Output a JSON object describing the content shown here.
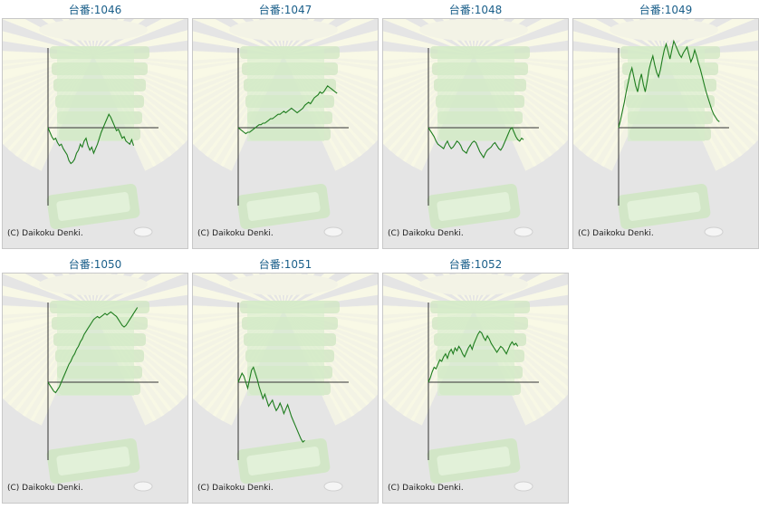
{
  "colors": {
    "title": "#1a5f8a",
    "line": "#1e7d1e",
    "axis": "#333333",
    "panel_bg": "#e5e5e5"
  },
  "chart_data": [
    {
      "type": "line",
      "title": "台番:1046",
      "copyright": "(C) Daikoku Denki.",
      "y": [
        0,
        -3,
        -6,
        -8,
        -7,
        -10,
        -12,
        -11,
        -14,
        -16,
        -18,
        -22,
        -24,
        -23,
        -21,
        -17,
        -15,
        -11,
        -13,
        -9,
        -7,
        -12,
        -15,
        -13,
        -17,
        -14,
        -11,
        -7,
        -3,
        0,
        3,
        6,
        9,
        7,
        4,
        1,
        -2,
        -1,
        -4,
        -7,
        -6,
        -9,
        -10,
        -11,
        -8,
        -12
      ]
    },
    {
      "type": "line",
      "title": "台番:1047",
      "copyright": "(C) Daikoku Denki.",
      "y": [
        0,
        -1,
        -2,
        -3,
        -4,
        -3,
        -3,
        -2,
        -1,
        0,
        1,
        2,
        2,
        3,
        3,
        4,
        5,
        6,
        6,
        7,
        8,
        9,
        9,
        10,
        11,
        10,
        11,
        12,
        13,
        12,
        11,
        10,
        11,
        12,
        13,
        15,
        16,
        17,
        16,
        18,
        20,
        21,
        22,
        24,
        23,
        24,
        26,
        28,
        27,
        26,
        25,
        24,
        23
      ]
    },
    {
      "type": "line",
      "title": "台番:1048",
      "copyright": "(C) Daikoku Denki.",
      "y": [
        0,
        -2,
        -4,
        -6,
        -9,
        -11,
        -12,
        -13,
        -14,
        -11,
        -9,
        -12,
        -14,
        -13,
        -11,
        -9,
        -10,
        -12,
        -15,
        -16,
        -17,
        -14,
        -12,
        -10,
        -9,
        -10,
        -13,
        -16,
        -18,
        -20,
        -17,
        -15,
        -14,
        -13,
        -11,
        -10,
        -12,
        -14,
        -15,
        -13,
        -10,
        -7,
        -4,
        -1,
        0,
        -3,
        -6,
        -8,
        -9,
        -7,
        -8
      ]
    },
    {
      "type": "line",
      "title": "台番:1049",
      "copyright": "(C) Daikoku Denki.",
      "y": [
        0,
        5,
        11,
        17,
        24,
        30,
        36,
        40,
        34,
        28,
        24,
        31,
        36,
        29,
        24,
        31,
        39,
        44,
        48,
        42,
        37,
        34,
        39,
        46,
        52,
        56,
        51,
        46,
        52,
        58,
        55,
        52,
        49,
        47,
        50,
        52,
        54,
        49,
        44,
        47,
        52,
        48,
        43,
        39,
        34,
        29,
        24,
        20,
        16,
        12,
        9,
        7,
        5,
        4
      ]
    },
    {
      "type": "line",
      "title": "台番:1050",
      "copyright": "(C) Daikoku Denki.",
      "y": [
        0,
        -2,
        -4,
        -6,
        -7,
        -5,
        -3,
        0,
        3,
        6,
        9,
        12,
        14,
        17,
        19,
        22,
        24,
        27,
        29,
        32,
        34,
        36,
        38,
        40,
        42,
        43,
        44,
        43,
        44,
        45,
        46,
        45,
        46,
        47,
        46,
        45,
        44,
        42,
        40,
        38,
        37,
        38,
        40,
        42,
        44,
        46,
        48,
        50
      ]
    },
    {
      "type": "line",
      "title": "台番:1051",
      "copyright": "(C) Daikoku Denki.",
      "y": [
        0,
        3,
        6,
        4,
        0,
        -4,
        2,
        8,
        10,
        6,
        2,
        -3,
        -7,
        -11,
        -8,
        -12,
        -16,
        -14,
        -12,
        -16,
        -19,
        -17,
        -14,
        -17,
        -21,
        -18,
        -15,
        -19,
        -23,
        -26,
        -29,
        -32,
        -35,
        -38,
        -40,
        -39
      ]
    },
    {
      "type": "line",
      "title": "台番:1052",
      "copyright": "(C) Daikoku Denki.",
      "y": [
        0,
        3,
        7,
        10,
        9,
        12,
        15,
        14,
        17,
        19,
        16,
        20,
        22,
        19,
        23,
        21,
        24,
        22,
        19,
        17,
        20,
        23,
        25,
        22,
        26,
        29,
        32,
        34,
        33,
        30,
        28,
        31,
        29,
        26,
        24,
        22,
        20,
        22,
        24,
        23,
        21,
        19,
        22,
        25,
        27,
        25,
        26,
        24
      ]
    }
  ]
}
